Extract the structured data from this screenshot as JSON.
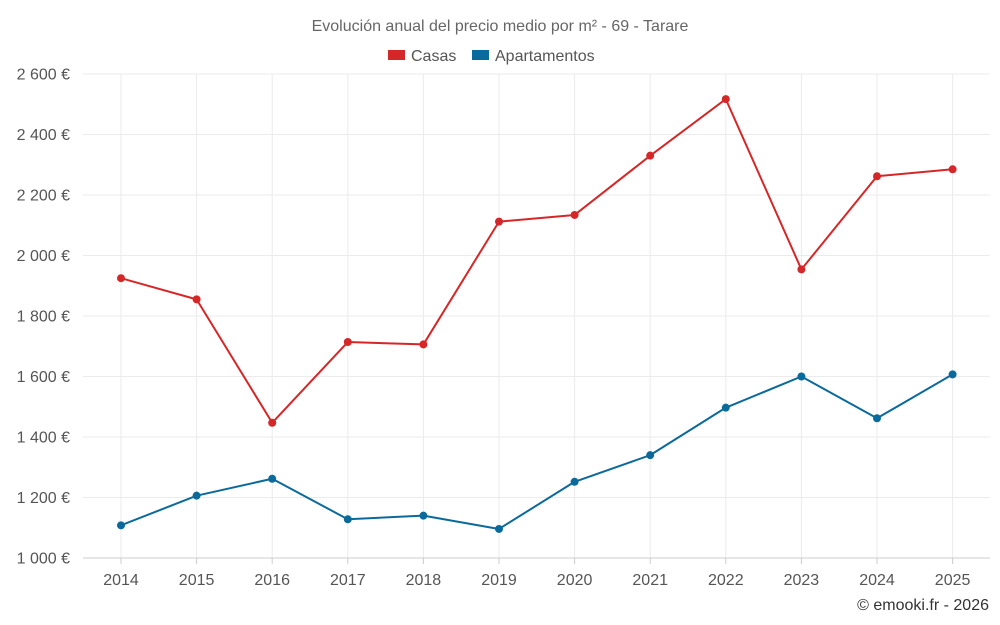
{
  "chart_data": {
    "type": "line",
    "title": "Evolución anual del precio medio por m² - 69 - Tarare",
    "categories": [
      "2014",
      "2015",
      "2016",
      "2017",
      "2018",
      "2019",
      "2020",
      "2021",
      "2022",
      "2023",
      "2024",
      "2025"
    ],
    "series": [
      {
        "name": "Casas",
        "color": "#d62728",
        "values": [
          1925,
          1855,
          1447,
          1714,
          1706,
          2112,
          2134,
          2330,
          2517,
          1954,
          2262,
          2285
        ]
      },
      {
        "name": "Apartamentos",
        "color": "#0b6a9c",
        "values": [
          1108,
          1206,
          1262,
          1128,
          1140,
          1096,
          1252,
          1340,
          1497,
          1600,
          1462,
          1607
        ]
      }
    ],
    "ylim": [
      1000,
      2600
    ],
    "yticks": [
      1000,
      1200,
      1400,
      1600,
      1800,
      2000,
      2200,
      2400,
      2600
    ],
    "ytick_labels": [
      "1 000 €",
      "1 200 €",
      "1 400 €",
      "1 600 €",
      "1 800 €",
      "2 000 €",
      "2 200 €",
      "2 400 €",
      "2 600 €"
    ],
    "grid": true,
    "legend_position": "top-center",
    "xlabel": "",
    "ylabel": ""
  },
  "credit": "© emooki.fr - 2026"
}
